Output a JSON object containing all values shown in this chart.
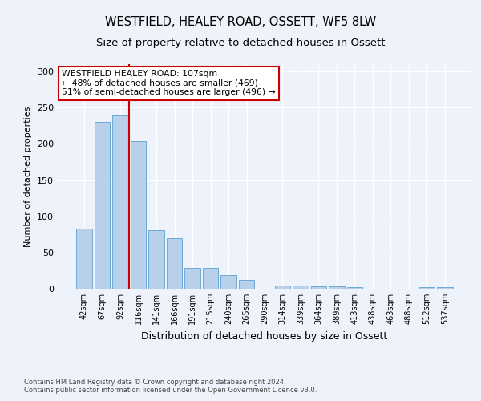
{
  "title": "WESTFIELD, HEALEY ROAD, OSSETT, WF5 8LW",
  "subtitle": "Size of property relative to detached houses in Ossett",
  "xlabel": "Distribution of detached houses by size in Ossett",
  "ylabel": "Number of detached properties",
  "categories": [
    "42sqm",
    "67sqm",
    "92sqm",
    "116sqm",
    "141sqm",
    "166sqm",
    "191sqm",
    "215sqm",
    "240sqm",
    "265sqm",
    "290sqm",
    "314sqm",
    "339sqm",
    "364sqm",
    "389sqm",
    "413sqm",
    "438sqm",
    "463sqm",
    "488sqm",
    "512sqm",
    "537sqm"
  ],
  "values": [
    83,
    230,
    239,
    204,
    81,
    70,
    29,
    29,
    19,
    12,
    0,
    4,
    4,
    3,
    3,
    2,
    0,
    0,
    0,
    2,
    2
  ],
  "bar_color": "#b8d0ea",
  "bar_edge_color": "#6aaad4",
  "vline_x": 2.5,
  "vline_color": "#cc0000",
  "annotation_text": "WESTFIELD HEALEY ROAD: 107sqm\n← 48% of detached houses are smaller (469)\n51% of semi-detached houses are larger (496) →",
  "annotation_box_color": "white",
  "annotation_box_edge": "#cc0000",
  "ylim": [
    0,
    310
  ],
  "yticks": [
    0,
    50,
    100,
    150,
    200,
    250,
    300
  ],
  "footer1": "Contains HM Land Registry data © Crown copyright and database right 2024.",
  "footer2": "Contains public sector information licensed under the Open Government Licence v3.0.",
  "bg_color": "#eef2fa",
  "plot_bg_color": "#eef2fa",
  "title_fontsize": 10.5,
  "subtitle_fontsize": 9.5,
  "ann_fontsize": 7.8,
  "footer_fontsize": 6.0
}
